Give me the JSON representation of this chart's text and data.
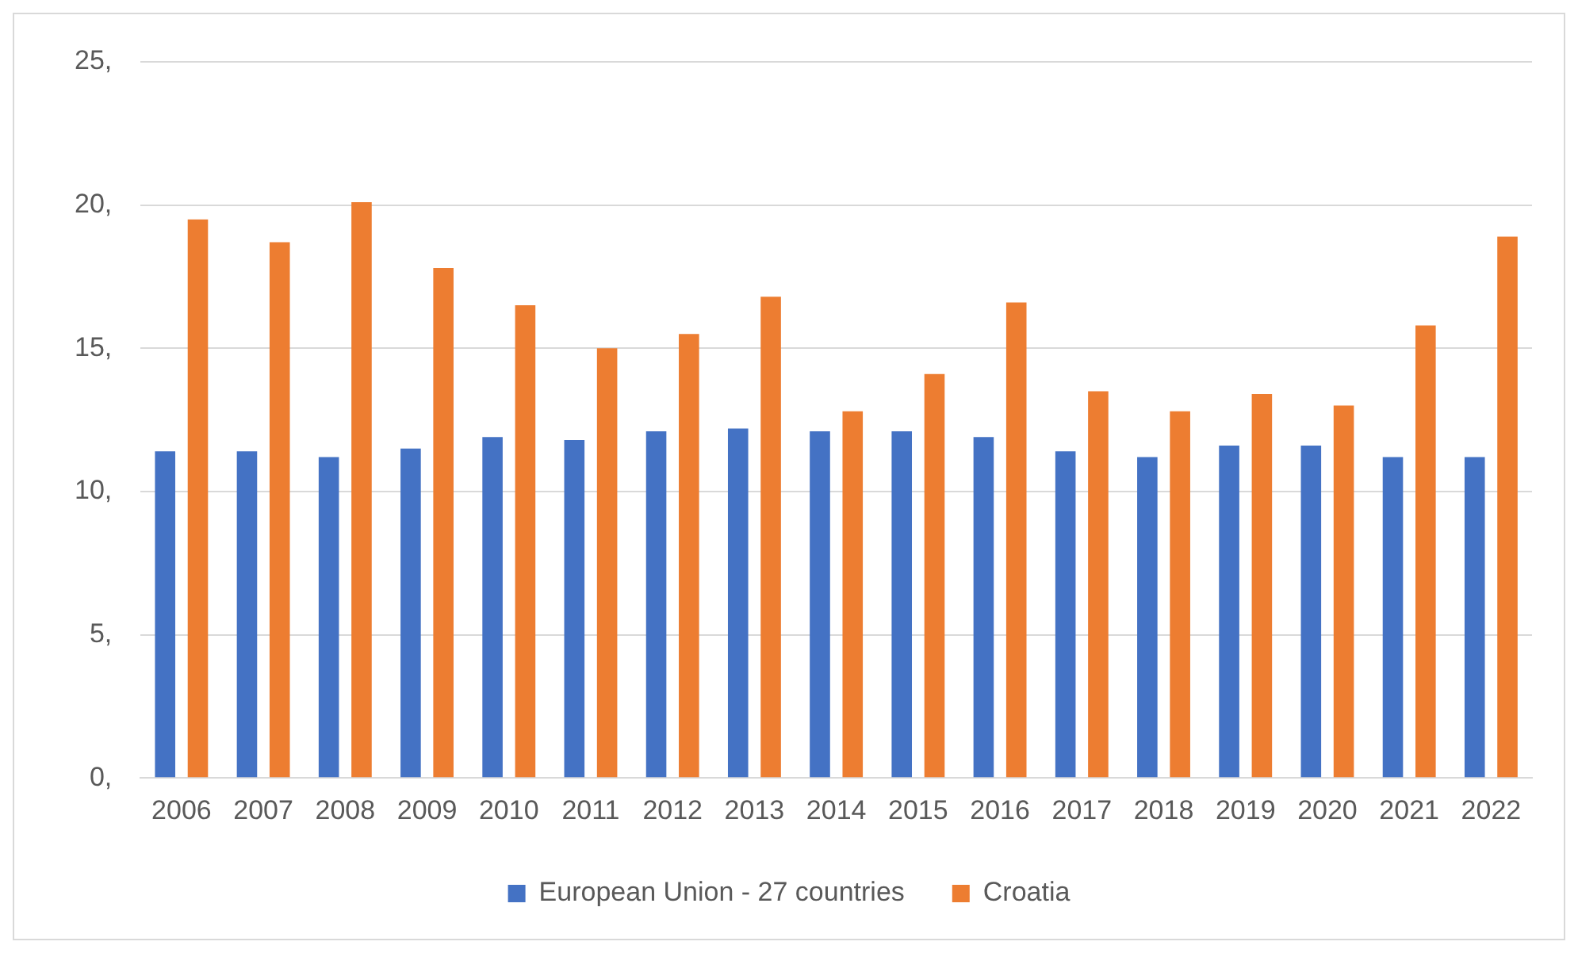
{
  "chart_data": {
    "type": "bar",
    "categories": [
      "2006",
      "2007",
      "2008",
      "2009",
      "2010",
      "2011",
      "2012",
      "2013",
      "2014",
      "2015",
      "2016",
      "2017",
      "2018",
      "2019",
      "2020",
      "2021",
      "2022"
    ],
    "series": [
      {
        "name": "European Union - 27 countries",
        "color": "#4472c4",
        "values": [
          11.4,
          11.4,
          11.2,
          11.5,
          11.9,
          11.8,
          12.1,
          12.2,
          12.1,
          12.1,
          11.9,
          11.4,
          11.2,
          11.6,
          11.6,
          11.2,
          11.2
        ]
      },
      {
        "name": "Croatia",
        "color": "#ed7d31",
        "values": [
          19.5,
          18.7,
          20.1,
          17.8,
          16.5,
          15.0,
          15.5,
          16.8,
          12.8,
          14.1,
          16.6,
          13.5,
          12.8,
          13.4,
          13.0,
          15.8,
          18.9
        ]
      }
    ],
    "ylim": [
      0,
      25
    ],
    "yticks": [
      {
        "value": 0,
        "label": "0,"
      },
      {
        "value": 5,
        "label": "5,"
      },
      {
        "value": 10,
        "label": "10,"
      },
      {
        "value": 15,
        "label": "15,"
      },
      {
        "value": 20,
        "label": "20,"
      },
      {
        "value": 25,
        "label": "25,"
      }
    ],
    "grid": "y",
    "legend": "bottom"
  }
}
